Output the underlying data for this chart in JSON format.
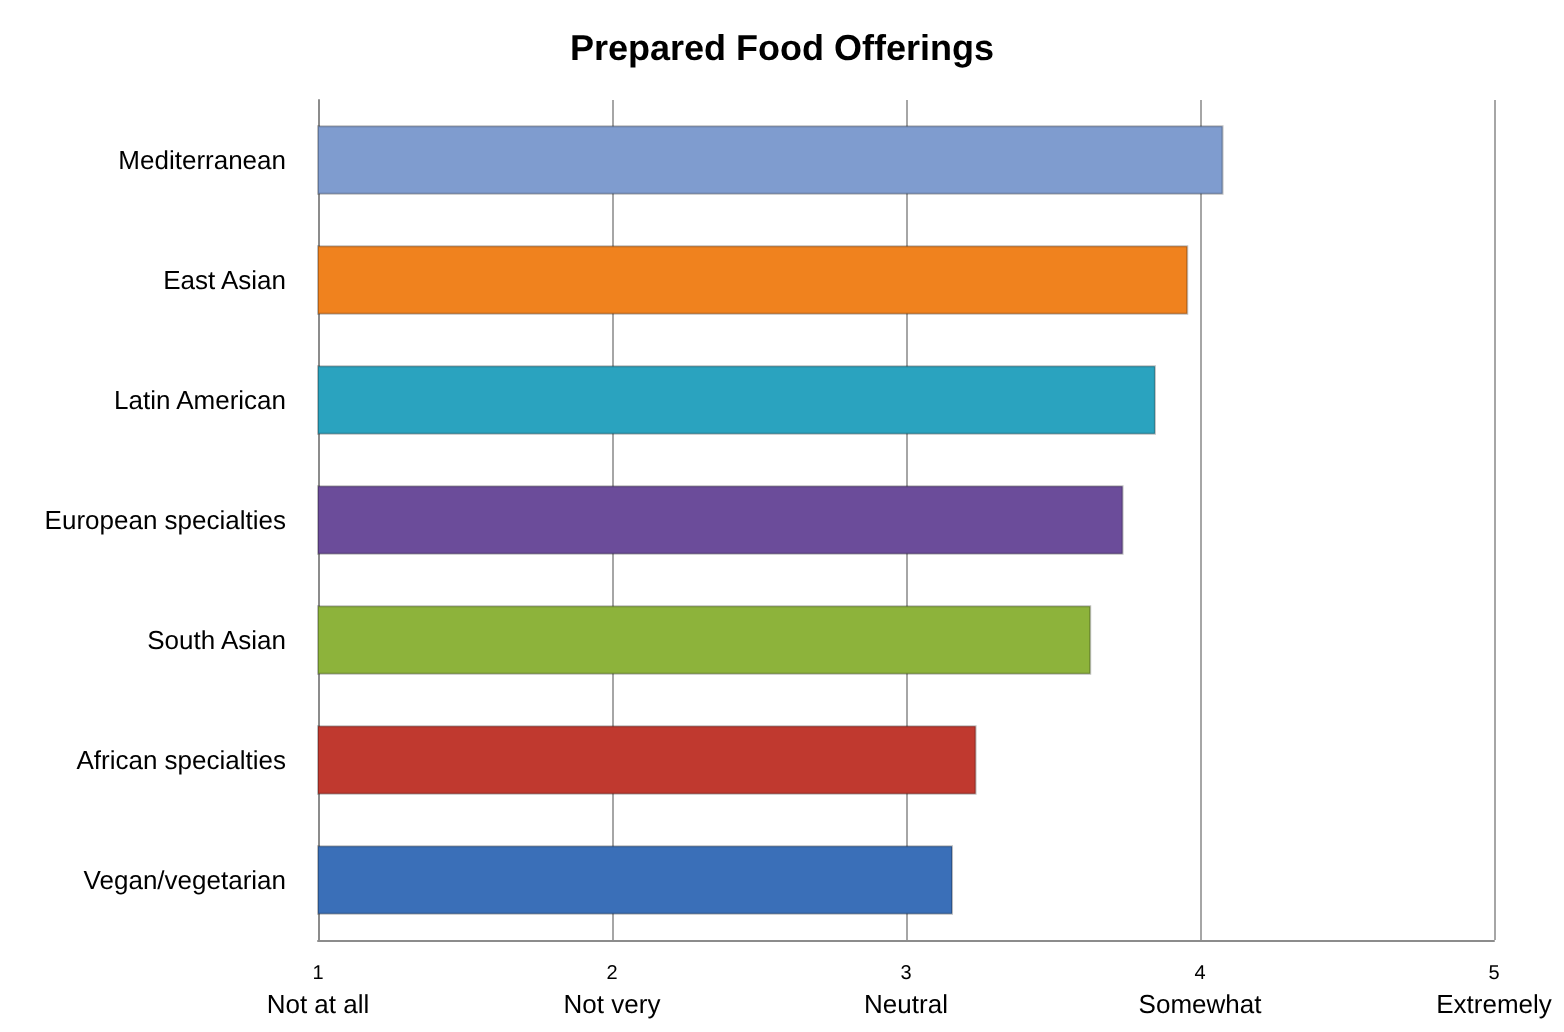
{
  "chart_data": {
    "type": "bar",
    "orientation": "horizontal",
    "title": "Prepared Food Offerings",
    "categories": [
      "Mediterranean",
      "East Asian",
      "Latin American",
      "European specialties",
      "South Asian",
      "African specialties",
      "Vegan/vegetarian"
    ],
    "values": [
      4.08,
      3.96,
      3.85,
      3.74,
      3.63,
      3.24,
      3.16
    ],
    "colors": [
      "#7f9ccf",
      "#f0821e",
      "#2aa3bf",
      "#6b4c9a",
      "#8db33b",
      "#c0392f",
      "#3a6fb8"
    ],
    "xlim": [
      1,
      5
    ],
    "xticks": [
      {
        "value": 1,
        "label": "1\nNot at all"
      },
      {
        "value": 2,
        "label": "2\nNot very"
      },
      {
        "value": 3,
        "label": "3\nNeutral"
      },
      {
        "value": 4,
        "label": "4\nSomewhat"
      },
      {
        "value": 5,
        "label": "5\nExtremely"
      }
    ],
    "grid": "x"
  }
}
